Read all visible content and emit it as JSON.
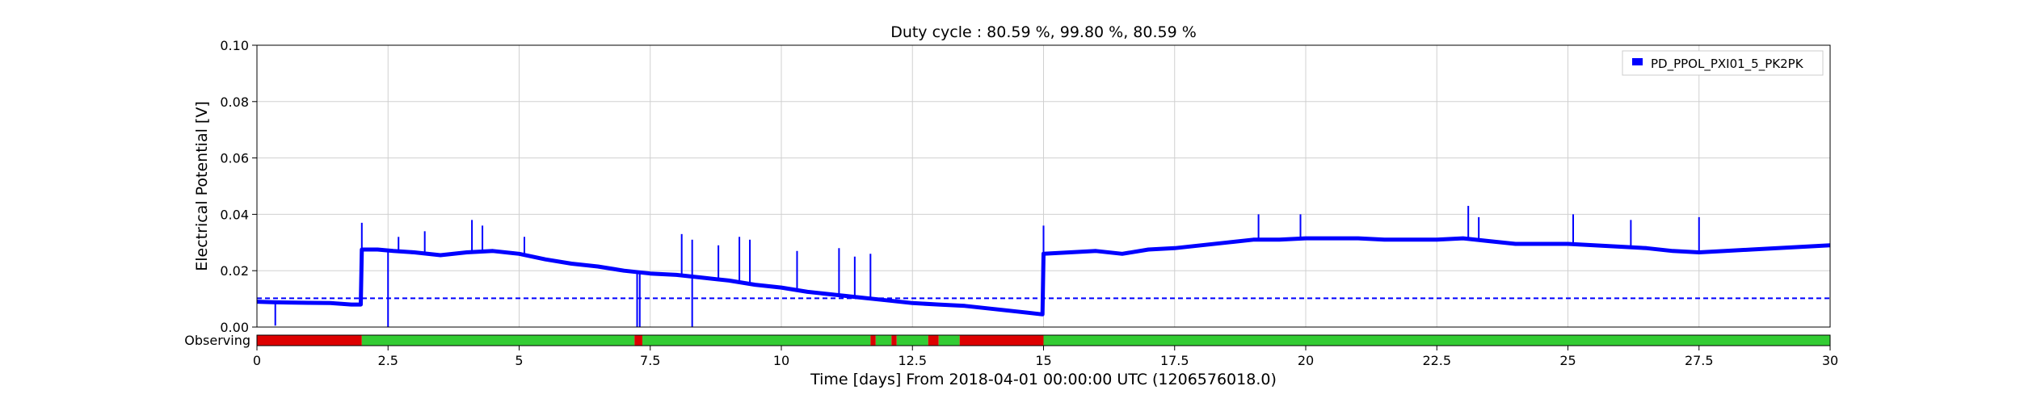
{
  "chart_data": {
    "type": "line",
    "title": "Duty cycle : 80.59 %, 99.80 %, 80.59 %",
    "xlabel": "Time [days] From 2018-04-01 00:00:00 UTC (1206576018.0)",
    "ylabel": "Electrical Potential [V]",
    "xlim": [
      0,
      30
    ],
    "ylim": [
      0,
      0.1
    ],
    "grid": true,
    "legend_position": "top-right",
    "x_ticks": [
      0,
      2.5,
      5,
      7.5,
      10,
      12.5,
      15,
      17.5,
      20,
      22.5,
      25,
      27.5,
      30
    ],
    "x_tick_labels": [
      "0",
      "2.5",
      "5",
      "7.5",
      "10",
      "12.5",
      "15",
      "17.5",
      "20",
      "22.5",
      "25",
      "27.5",
      "30"
    ],
    "y_ticks": [
      0,
      0.02,
      0.04,
      0.06,
      0.08,
      0.1
    ],
    "y_tick_labels": [
      "0.00",
      "0.02",
      "0.04",
      "0.06",
      "0.08",
      "0.10"
    ],
    "series": [
      {
        "name": "PD_PPOL_PXI01_5_PK2PK",
        "color": "#0000ff",
        "x": [
          0,
          0.3,
          0.6,
          1.0,
          1.4,
          1.8,
          1.98,
          2.0,
          2.3,
          2.6,
          3.0,
          3.5,
          4.0,
          4.5,
          5.0,
          5.5,
          6.0,
          6.5,
          7.0,
          7.5,
          8.0,
          8.5,
          9.0,
          9.5,
          10.0,
          10.5,
          11.0,
          11.5,
          12.0,
          12.5,
          13.0,
          13.5,
          14.0,
          14.5,
          14.98,
          15.0,
          15.5,
          16.0,
          16.5,
          17.0,
          17.5,
          18.0,
          18.5,
          19.0,
          19.5,
          20.0,
          20.5,
          21.0,
          21.5,
          22.0,
          22.5,
          23.0,
          23.5,
          24.0,
          24.5,
          25.0,
          25.5,
          26.0,
          26.5,
          27.0,
          27.5,
          28.0,
          28.5,
          29.0,
          29.5,
          30.0
        ],
        "y": [
          0.009,
          0.0088,
          0.0087,
          0.0086,
          0.0085,
          0.008,
          0.008,
          0.0275,
          0.0275,
          0.027,
          0.0265,
          0.0255,
          0.0265,
          0.027,
          0.026,
          0.024,
          0.0225,
          0.0215,
          0.02,
          0.019,
          0.0185,
          0.0175,
          0.0165,
          0.015,
          0.014,
          0.0125,
          0.0115,
          0.0105,
          0.0095,
          0.0085,
          0.008,
          0.0075,
          0.0065,
          0.0055,
          0.0045,
          0.026,
          0.0265,
          0.027,
          0.026,
          0.0275,
          0.028,
          0.029,
          0.03,
          0.031,
          0.031,
          0.0315,
          0.0315,
          0.0315,
          0.031,
          0.031,
          0.031,
          0.0315,
          0.0305,
          0.0295,
          0.0295,
          0.0295,
          0.029,
          0.0285,
          0.028,
          0.027,
          0.0265,
          0.027,
          0.0275,
          0.028,
          0.0285,
          0.029
        ]
      },
      {
        "name": "",
        "style": "dashed",
        "color": "#0000ff",
        "x": [
          0,
          30
        ],
        "y": [
          0.0102,
          0.0102
        ]
      }
    ],
    "spikes": [
      {
        "x": 2.0,
        "y": 0.037
      },
      {
        "x": 2.7,
        "y": 0.032
      },
      {
        "x": 3.2,
        "y": 0.034
      },
      {
        "x": 4.1,
        "y": 0.038
      },
      {
        "x": 4.3,
        "y": 0.036
      },
      {
        "x": 5.1,
        "y": 0.032
      },
      {
        "x": 8.1,
        "y": 0.033
      },
      {
        "x": 8.3,
        "y": 0.031
      },
      {
        "x": 8.8,
        "y": 0.029
      },
      {
        "x": 9.2,
        "y": 0.032
      },
      {
        "x": 9.4,
        "y": 0.031
      },
      {
        "x": 10.3,
        "y": 0.027
      },
      {
        "x": 11.1,
        "y": 0.028
      },
      {
        "x": 11.4,
        "y": 0.025
      },
      {
        "x": 11.7,
        "y": 0.026
      },
      {
        "x": 15.0,
        "y": 0.036
      },
      {
        "x": 19.1,
        "y": 0.04
      },
      {
        "x": 19.9,
        "y": 0.04
      },
      {
        "x": 23.1,
        "y": 0.043
      },
      {
        "x": 23.3,
        "y": 0.039
      },
      {
        "x": 25.1,
        "y": 0.04
      },
      {
        "x": 26.2,
        "y": 0.038
      },
      {
        "x": 27.5,
        "y": 0.039
      }
    ],
    "dips": [
      {
        "x": 0.35,
        "y": 0.0005
      },
      {
        "x": 2.5,
        "y": 0.0
      },
      {
        "x": 7.25,
        "y": 0.0
      },
      {
        "x": 7.3,
        "y": 0.0
      },
      {
        "x": 8.3,
        "y": 0.0
      }
    ],
    "state_bar": {
      "label": "Observing",
      "on_color": "#33cc33",
      "off_color": "#dd0000",
      "segments": [
        {
          "start": 0,
          "end": 2.0,
          "state": "off"
        },
        {
          "start": 2.0,
          "end": 7.2,
          "state": "on"
        },
        {
          "start": 7.2,
          "end": 7.35,
          "state": "off"
        },
        {
          "start": 7.35,
          "end": 11.7,
          "state": "on"
        },
        {
          "start": 11.7,
          "end": 11.8,
          "state": "off"
        },
        {
          "start": 11.8,
          "end": 12.1,
          "state": "on"
        },
        {
          "start": 12.1,
          "end": 12.2,
          "state": "off"
        },
        {
          "start": 12.2,
          "end": 12.8,
          "state": "on"
        },
        {
          "start": 12.8,
          "end": 13.0,
          "state": "off"
        },
        {
          "start": 13.0,
          "end": 13.4,
          "state": "on"
        },
        {
          "start": 13.4,
          "end": 15.0,
          "state": "off"
        },
        {
          "start": 15.0,
          "end": 30.0,
          "state": "on"
        }
      ]
    }
  }
}
